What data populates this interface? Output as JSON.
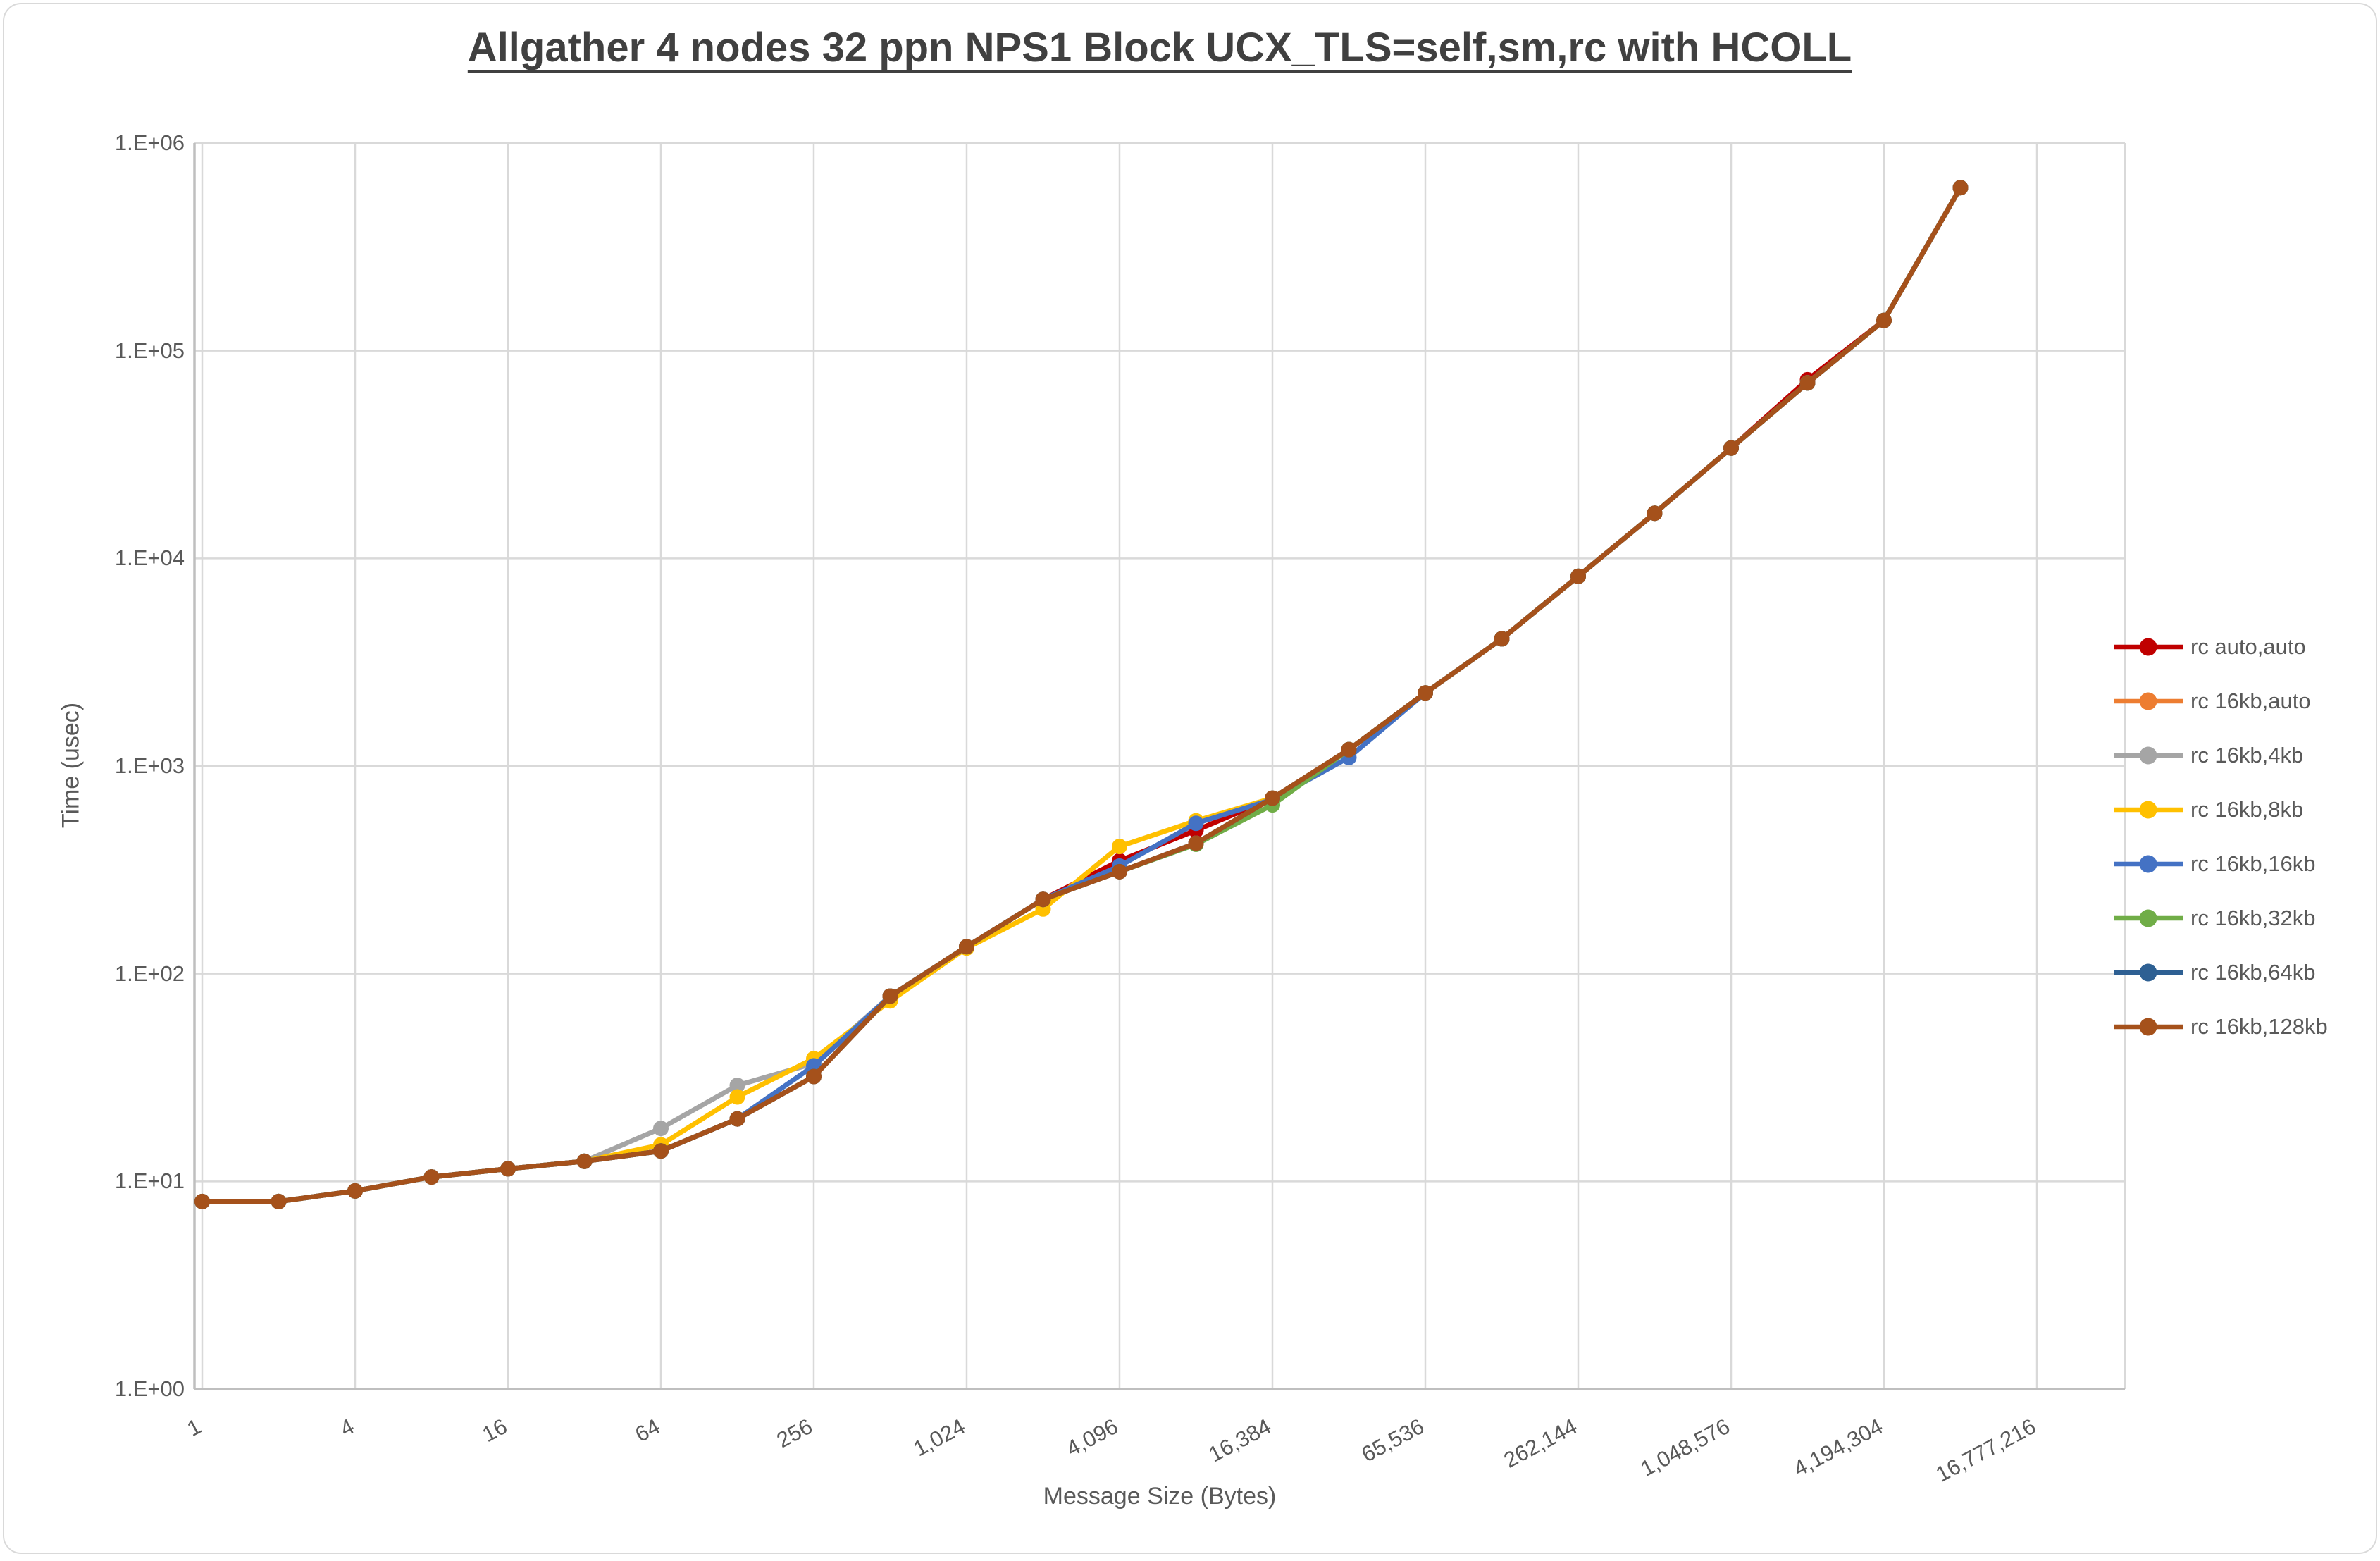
{
  "chart_data": {
    "type": "line",
    "title": "Allgather 4 nodes 32 ppn NPS1 Block UCX_TLS=self,sm,rc with HCOLL",
    "xlabel": "Message Size (Bytes)",
    "ylabel": "Time (usec)",
    "x_scale": "log2",
    "y_scale": "log10",
    "ylim": [
      1,
      1000000
    ],
    "grid": true,
    "legend_position": "right",
    "y_tick_labels": [
      "1.E+00",
      "1.E+01",
      "1.E+02",
      "1.E+03",
      "1.E+04",
      "1.E+05",
      "1.E+06"
    ],
    "x_tick_labels": [
      "1",
      "4",
      "16",
      "64",
      "256",
      "1,024",
      "4,096",
      "16,384",
      "65,536",
      "262,144",
      "1,048,576",
      "4,194,304",
      "16,777,216"
    ],
    "x": [
      1,
      2,
      4,
      8,
      16,
      32,
      64,
      128,
      256,
      512,
      1024,
      2048,
      4096,
      8192,
      16384,
      32768,
      65536,
      131072,
      262144,
      524288,
      1048576,
      2097152,
      4194304,
      8388608
    ],
    "series": [
      {
        "name": "rc auto,auto",
        "color": "#C00000",
        "values": [
          8,
          8,
          9,
          10.5,
          11.5,
          12.5,
          14,
          20,
          32,
          78,
          135,
          228,
          350,
          490,
          700,
          1200,
          2250,
          4100,
          8200,
          16500,
          34000,
          72500,
          140000,
          610000
        ]
      },
      {
        "name": "rc 16kb,auto",
        "color": "#ED7D31",
        "values": [
          8,
          8,
          9,
          10.5,
          11.5,
          12.5,
          14,
          20,
          32,
          78,
          135,
          228,
          310,
          425,
          700,
          1200,
          2250,
          4100,
          8200,
          16500,
          34000,
          70000,
          140000,
          610000
        ]
      },
      {
        "name": "rc 16kb,4kb",
        "color": "#A5A5A5",
        "values": [
          8,
          8,
          9,
          10.5,
          11.5,
          12.5,
          18,
          29,
          37,
          78,
          135,
          228,
          310,
          425,
          700,
          1200,
          2250,
          4100,
          8200,
          16500,
          34000,
          70000,
          140000,
          610000
        ]
      },
      {
        "name": "rc 16kb,8kb",
        "color": "#FFC000",
        "values": [
          8,
          8,
          9,
          10.5,
          11.5,
          12.5,
          15,
          25.5,
          39,
          74,
          133,
          205,
          410,
          545,
          700,
          1200,
          2250,
          4100,
          8200,
          16500,
          34000,
          70000,
          140000,
          610000
        ]
      },
      {
        "name": "rc 16kb,16kb",
        "color": "#4472C4",
        "values": [
          8,
          8,
          9,
          10.5,
          11.5,
          12.5,
          14,
          20,
          36,
          78,
          135,
          228,
          330,
          530,
          690,
          1100,
          2250,
          4100,
          8200,
          16500,
          34000,
          70000,
          140000,
          610000
        ]
      },
      {
        "name": "rc 16kb,32kb",
        "color": "#70AD47",
        "values": [
          8,
          8,
          9,
          10.5,
          11.5,
          12.5,
          14,
          20,
          32,
          78,
          135,
          228,
          310,
          420,
          650,
          1200,
          2250,
          4100,
          8200,
          16500,
          34000,
          70000,
          140000,
          610000
        ]
      },
      {
        "name": "rc 16kb,64kb",
        "color": "#2E6093",
        "values": [
          8,
          8,
          9,
          10.5,
          11.5,
          12.5,
          14,
          20,
          32,
          78,
          135,
          228,
          310,
          425,
          700,
          1200,
          2250,
          4100,
          8200,
          16500,
          34000,
          70000,
          140000,
          610000
        ]
      },
      {
        "name": "rc 16kb,128kb",
        "color": "#A5511B",
        "values": [
          8,
          8,
          9,
          10.5,
          11.5,
          12.5,
          14,
          20,
          32,
          78,
          135,
          228,
          310,
          425,
          700,
          1200,
          2250,
          4100,
          8200,
          16500,
          34000,
          70000,
          140000,
          610000
        ]
      }
    ],
    "colors": {
      "grid": "#D9D9D9",
      "axis": "#BFBFBF",
      "title": "#404040",
      "tick": "#595959",
      "background": "#FFFFFF"
    }
  }
}
